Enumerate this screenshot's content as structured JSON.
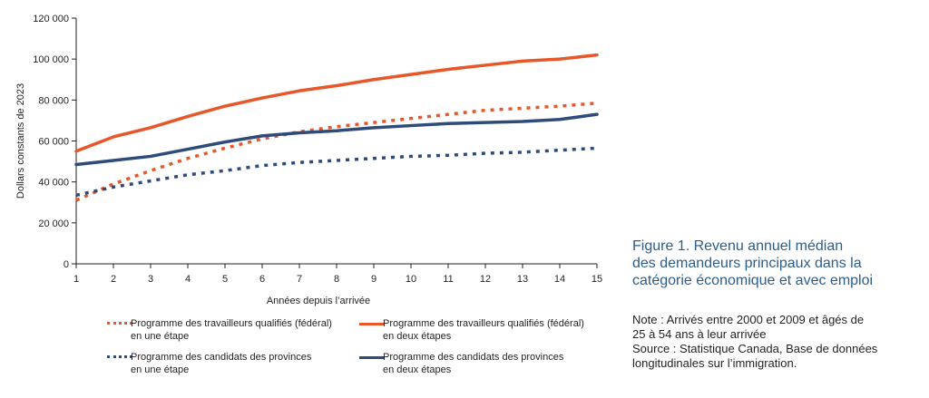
{
  "chart_data": {
    "type": "line",
    "xlabel": "Années depuis l’arrivée",
    "ylabel": "Dollars constants de 2023",
    "x": [
      1,
      2,
      3,
      4,
      5,
      6,
      7,
      8,
      9,
      10,
      11,
      12,
      13,
      14,
      15
    ],
    "xlim": [
      1,
      15
    ],
    "ylim": [
      0,
      120000
    ],
    "yticks": [
      0,
      20000,
      40000,
      60000,
      80000,
      100000,
      120000
    ],
    "ytick_labels": [
      "0",
      "20 000",
      "40 000",
      "60 000",
      "80 000",
      "100 000",
      "120 000"
    ],
    "grid": false,
    "legend_position": "bottom",
    "series": [
      {
        "name": "Programme des travailleurs qualifiés (fédéral) en une étape",
        "color": "#e8572a",
        "style": "dotted",
        "values": [
          31000,
          39000,
          45500,
          51500,
          56500,
          61000,
          64500,
          67000,
          69000,
          71000,
          73000,
          75000,
          76000,
          77000,
          78500
        ]
      },
      {
        "name": "Programme des travailleurs qualifiés (fédéral) en deux étapes",
        "color": "#e8572a",
        "style": "solid",
        "values": [
          55000,
          62000,
          66500,
          72000,
          77000,
          81000,
          84500,
          87000,
          90000,
          92500,
          95000,
          97000,
          99000,
          100000,
          102000
        ]
      },
      {
        "name": "Programme des candidats des provinces en une étape",
        "color": "#2e4b7b",
        "style": "dotted",
        "values": [
          33500,
          37500,
          40500,
          43500,
          45500,
          48000,
          49500,
          50500,
          51500,
          52500,
          53000,
          54000,
          54500,
          55500,
          56500
        ]
      },
      {
        "name": "Programme des candidats des provinces en deux étapes",
        "color": "#2e4b7b",
        "style": "solid",
        "values": [
          48500,
          50500,
          52500,
          56000,
          59500,
          62500,
          64000,
          65000,
          66500,
          67500,
          68500,
          69000,
          69500,
          70500,
          73000
        ]
      }
    ]
  },
  "legend": [
    {
      "line1": "Programme des travailleurs qualifiés (fédéral)",
      "line2": "en une étape"
    },
    {
      "line1": "Programme des travailleurs qualifiés (fédéral)",
      "line2": "en deux étapes"
    },
    {
      "line1": "Programme des candidats des provinces",
      "line2": "en une étape"
    },
    {
      "line1": "Programme des candidats des provinces",
      "line2": "en deux étapes"
    }
  ],
  "figure": {
    "title_line1": "Figure 1. Revenu annuel médian",
    "title_line2": "des demandeurs principaux dans la",
    "title_line3": "catégorie économique et avec emploi",
    "note_line1": "Note : Arrivés entre 2000 et 2009 et âgés de",
    "note_line2": "25 à 54 ans à leur arrivée",
    "note_line3": "Source : Statistique Canada, Base de données",
    "note_line4": "longitudinales sur l’immigration."
  }
}
